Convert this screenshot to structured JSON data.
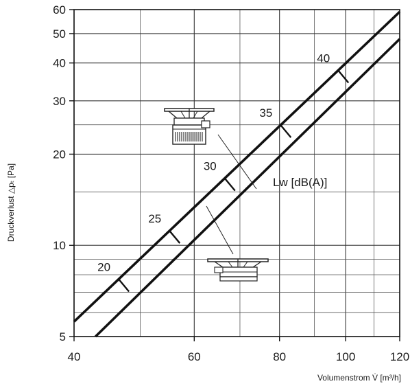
{
  "chart_data": {
    "type": "line",
    "x_scale": "log",
    "y_scale": "log",
    "xlim": [
      40,
      120
    ],
    "ylim": [
      5,
      60
    ],
    "x_ticks": [
      40,
      60,
      80,
      100,
      120
    ],
    "y_ticks": [
      5,
      10,
      20,
      30,
      40,
      50,
      60
    ],
    "x_minor_grid": [
      50,
      70,
      90,
      110
    ],
    "y_minor_grid": [
      6,
      7,
      8,
      9,
      15,
      25
    ],
    "grid": true,
    "xlabel": "Volumenstrom V̇  [m³/h]",
    "ylabel": "Druckverlust △pₜ [Pa]",
    "series": [
      {
        "x": [
          40,
          120
        ],
        "y": [
          5.6,
          59
        ]
      },
      {
        "x": [
          43,
          120
        ],
        "y": [
          5.0,
          48
        ]
      }
    ],
    "sound_label": "Lw [dB(A)]",
    "sound_levels": [
      {
        "label": "20",
        "x": 46.5,
        "y": 6.6
      },
      {
        "label": "25",
        "x": 55.2,
        "y": 10.0
      },
      {
        "label": "30",
        "x": 66.5,
        "y": 14.5
      },
      {
        "label": "35",
        "x": 80.3,
        "y": 21.0
      },
      {
        "label": "40",
        "x": 97.5,
        "y": 32.0
      }
    ],
    "icons": [
      "diffuser-tall-icon",
      "diffuser-flat-icon"
    ]
  }
}
